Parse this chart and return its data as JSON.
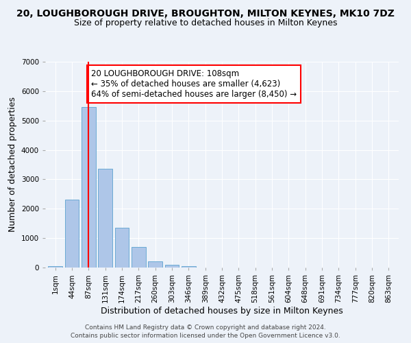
{
  "title": "20, LOUGHBOROUGH DRIVE, BROUGHTON, MILTON KEYNES, MK10 7DZ",
  "subtitle": "Size of property relative to detached houses in Milton Keynes",
  "xlabel": "Distribution of detached houses by size in Milton Keynes",
  "ylabel": "Number of detached properties",
  "footnote1": "Contains HM Land Registry data © Crown copyright and database right 2024.",
  "footnote2": "Contains public sector information licensed under the Open Government Licence v3.0.",
  "categories": [
    "1sqm",
    "44sqm",
    "87sqm",
    "131sqm",
    "174sqm",
    "217sqm",
    "260sqm",
    "303sqm",
    "346sqm",
    "389sqm",
    "432sqm",
    "475sqm",
    "518sqm",
    "561sqm",
    "604sqm",
    "648sqm",
    "691sqm",
    "734sqm",
    "777sqm",
    "820sqm",
    "863sqm"
  ],
  "values": [
    50,
    2300,
    5450,
    3350,
    1350,
    700,
    200,
    90,
    50,
    0,
    0,
    0,
    0,
    0,
    0,
    0,
    0,
    0,
    0,
    0,
    0
  ],
  "bar_color": "#aec6e8",
  "bar_edge_color": "#6aaad4",
  "marker_bin_index": 2,
  "marker_color": "red",
  "annotation_text": "20 LOUGHBOROUGH DRIVE: 108sqm\n← 35% of detached houses are smaller (4,623)\n64% of semi-detached houses are larger (8,450) →",
  "ylim": [
    0,
    7000
  ],
  "yticks": [
    0,
    1000,
    2000,
    3000,
    4000,
    5000,
    6000,
    7000
  ],
  "bg_color": "#edf2f9",
  "plot_bg_color": "#edf2f9",
  "grid_color": "white",
  "title_fontsize": 10,
  "subtitle_fontsize": 9,
  "xlabel_fontsize": 9,
  "ylabel_fontsize": 9,
  "tick_fontsize": 7.5,
  "annotation_fontsize": 8.5,
  "footnote_fontsize": 6.5
}
